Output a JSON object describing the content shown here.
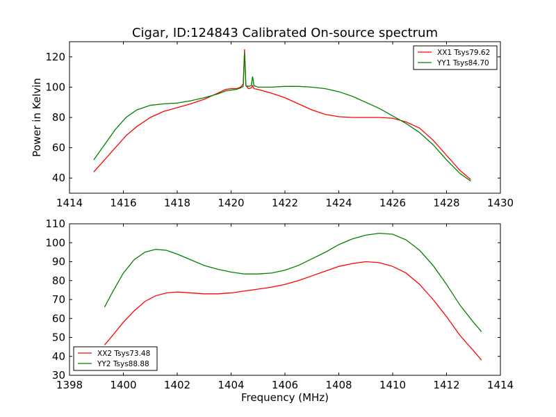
{
  "chart_data": [
    {
      "type": "line",
      "title": "Cigar, ID:124843 Calibrated On-source spectrum",
      "xlabel": "",
      "ylabel": "Power in Kelvin",
      "xlim": [
        1414,
        1430
      ],
      "ylim": [
        30,
        130
      ],
      "xticks": [
        1414,
        1416,
        1418,
        1420,
        1422,
        1424,
        1426,
        1428,
        1430
      ],
      "yticks": [
        40,
        60,
        80,
        100,
        120
      ],
      "grid": false,
      "legend": "top-right",
      "series": [
        {
          "name": "XX1 Tsys79.62",
          "color": "#ff0000",
          "x": [
            1414.9,
            1415.3,
            1415.7,
            1416.1,
            1416.5,
            1417.0,
            1417.5,
            1418.0,
            1418.5,
            1419.0,
            1419.5,
            1419.8,
            1420.0,
            1420.2,
            1420.35,
            1420.45,
            1420.5,
            1420.55,
            1420.65,
            1420.75,
            1420.8,
            1420.85,
            1421.0,
            1421.5,
            1422.0,
            1422.5,
            1423.0,
            1423.5,
            1424.0,
            1424.5,
            1425.0,
            1425.5,
            1426.0,
            1426.5,
            1427.0,
            1427.5,
            1428.0,
            1428.5,
            1428.9
          ],
          "y": [
            44,
            52,
            60,
            68,
            74,
            80,
            84,
            86.5,
            89,
            92,
            96,
            98.5,
            99,
            99,
            100,
            102,
            125,
            101,
            99,
            99.5,
            101,
            99,
            98.5,
            96,
            93,
            89,
            85,
            82,
            80.5,
            80,
            80,
            80,
            79.5,
            77,
            73,
            65,
            55,
            45,
            39
          ]
        },
        {
          "name": "YY1 Tsys84.70",
          "color": "#008000",
          "x": [
            1414.9,
            1415.3,
            1415.7,
            1416.1,
            1416.5,
            1417.0,
            1417.5,
            1418.0,
            1418.5,
            1419.0,
            1419.5,
            1419.8,
            1420.0,
            1420.2,
            1420.35,
            1420.45,
            1420.5,
            1420.55,
            1420.65,
            1420.75,
            1420.8,
            1420.85,
            1421.0,
            1421.5,
            1422.0,
            1422.5,
            1423.0,
            1423.5,
            1424.0,
            1424.5,
            1425.0,
            1425.5,
            1426.0,
            1426.5,
            1427.0,
            1427.5,
            1428.0,
            1428.5,
            1428.9
          ],
          "y": [
            52,
            62,
            72,
            80,
            85,
            88,
            89,
            89.5,
            91,
            93,
            95.5,
            97.5,
            98,
            98.5,
            99.5,
            100.5,
            123,
            101,
            100.5,
            101,
            107,
            101,
            100,
            100,
            100.5,
            100.5,
            100,
            99,
            97,
            94,
            90,
            86,
            81,
            76,
            70,
            62,
            52,
            43,
            38
          ]
        }
      ]
    },
    {
      "type": "line",
      "title": "",
      "xlabel": "Frequency (MHz)",
      "ylabel": "",
      "xlim": [
        1398,
        1414
      ],
      "ylim": [
        30,
        110
      ],
      "xticks": [
        1398,
        1400,
        1402,
        1404,
        1406,
        1408,
        1410,
        1412,
        1414
      ],
      "yticks": [
        30,
        40,
        50,
        60,
        70,
        80,
        90,
        100,
        110
      ],
      "grid": false,
      "legend": "bottom-left",
      "series": [
        {
          "name": "XX2 Tsys73.48",
          "color": "#ff0000",
          "x": [
            1399.3,
            1399.6,
            1400.0,
            1400.4,
            1400.8,
            1401.2,
            1401.6,
            1402.0,
            1402.5,
            1403.0,
            1403.5,
            1404.0,
            1404.5,
            1405.0,
            1405.5,
            1406.0,
            1406.5,
            1407.0,
            1407.5,
            1408.0,
            1408.5,
            1409.0,
            1409.5,
            1410.0,
            1410.5,
            1411.0,
            1411.5,
            1412.0,
            1412.5,
            1413.0,
            1413.3
          ],
          "y": [
            46,
            51,
            58,
            64,
            69,
            72,
            73.5,
            74,
            73.5,
            73,
            73,
            73.5,
            74.5,
            75.5,
            76.5,
            78,
            80,
            82.5,
            85,
            87.5,
            89,
            90,
            89.5,
            87.5,
            84,
            78,
            70,
            61,
            51,
            43,
            38
          ]
        },
        {
          "name": "YY2 Tsys88.88",
          "color": "#008000",
          "x": [
            1399.3,
            1399.6,
            1400.0,
            1400.4,
            1400.8,
            1401.2,
            1401.6,
            1402.0,
            1402.5,
            1403.0,
            1403.5,
            1404.0,
            1404.5,
            1405.0,
            1405.5,
            1406.0,
            1406.5,
            1407.0,
            1407.5,
            1408.0,
            1408.5,
            1409.0,
            1409.5,
            1410.0,
            1410.5,
            1411.0,
            1411.5,
            1412.0,
            1412.5,
            1413.0,
            1413.3
          ],
          "y": [
            66,
            74,
            84,
            91,
            95,
            96.5,
            96,
            94,
            91,
            88,
            86,
            84.5,
            83.5,
            83.5,
            84,
            85.5,
            88,
            91.5,
            95,
            99,
            102,
            104,
            105,
            104.5,
            101.5,
            96,
            88,
            78,
            67,
            58,
            53
          ]
        }
      ]
    }
  ]
}
